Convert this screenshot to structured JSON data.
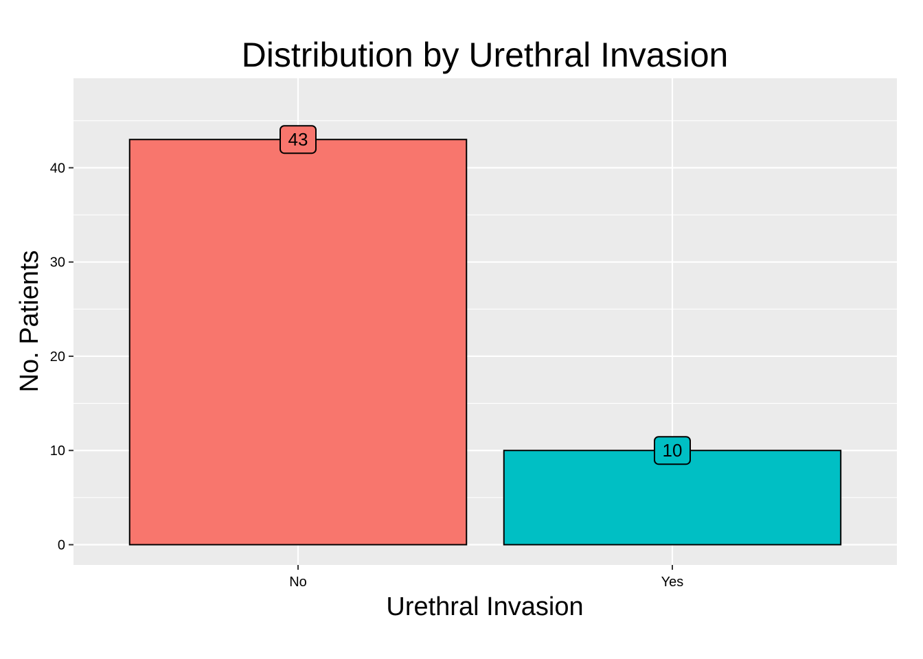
{
  "chart_data": {
    "type": "bar",
    "title": "Distribution by Urethral Invasion",
    "xlabel": "Urethral Invasion",
    "ylabel": "No. Patients",
    "categories": [
      "No",
      "Yes"
    ],
    "values": [
      43,
      10
    ],
    "data_labels": [
      "43",
      "10"
    ],
    "colors": [
      "#F8766D",
      "#00BFC4"
    ],
    "ylim": [
      -2.15,
      49.5
    ],
    "yticks": [
      0,
      10,
      20,
      30,
      40
    ],
    "ytick_labels": [
      "0",
      "10",
      "20",
      "30",
      "40"
    ],
    "grid": true,
    "panel_background": "#EBEBEB",
    "grid_color": "#FFFFFF",
    "bar_outline_color": "#000000"
  }
}
